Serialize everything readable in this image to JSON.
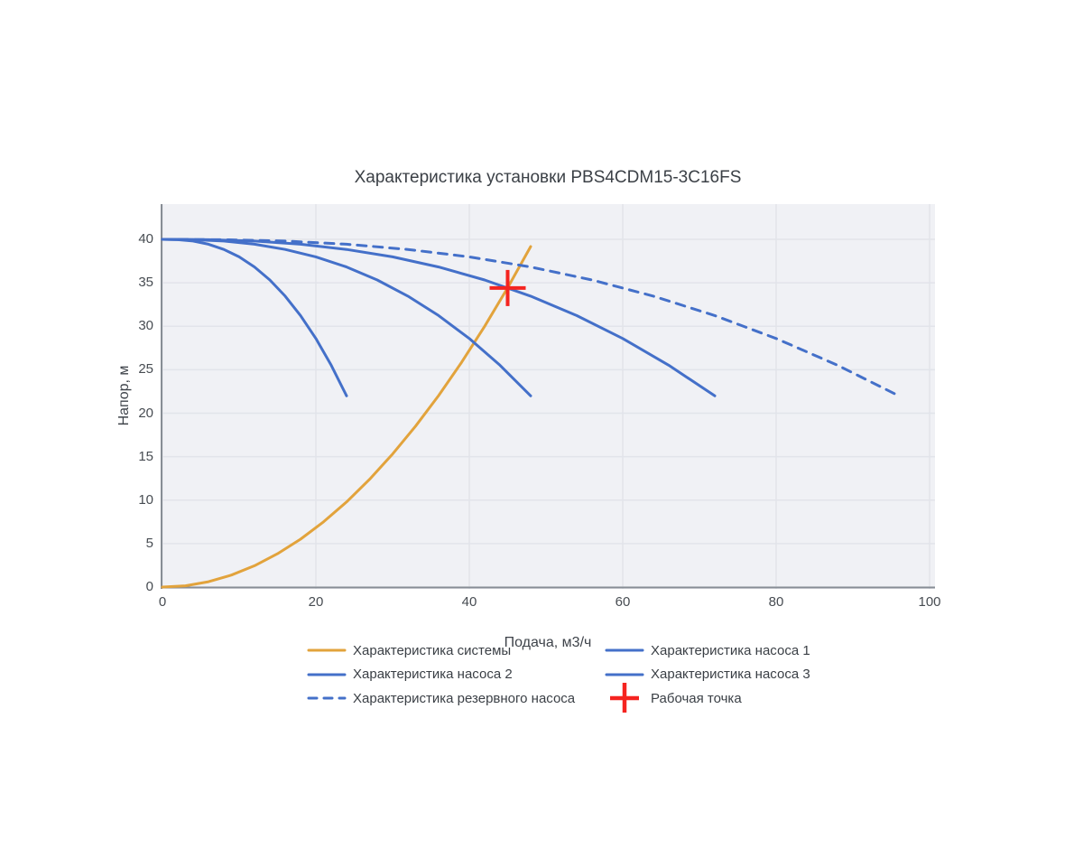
{
  "chart_data": {
    "type": "line",
    "title": "Характеристика установки PBS4CDM15-3C16FS",
    "xlabel": "Подача, м3/ч",
    "ylabel": "Напор, м",
    "xlim": [
      0,
      100.7
    ],
    "ylim": [
      0,
      44
    ],
    "x_ticks": [
      0,
      20,
      40,
      60,
      80,
      100
    ],
    "y_ticks": [
      0,
      5,
      10,
      15,
      20,
      25,
      30,
      35,
      40
    ],
    "grid": true,
    "legend_position": "bottom",
    "working_point": {
      "x": 45,
      "y": 34.4
    },
    "colors": {
      "system": "#e2a33c",
      "pump": "#4470c9",
      "reserve": "#4470c9",
      "working_point": "#f52420",
      "plot_background": "#f0f1f5",
      "gridline": "#e2e4ea",
      "axis_line": "#878d95",
      "text": "#3b4046"
    },
    "series": [
      {
        "name": "Характеристика системы",
        "color": "#e2a33c",
        "dash": "solid",
        "kind": "line",
        "x": [
          0,
          3,
          6,
          9,
          12,
          15,
          18,
          21,
          24,
          27,
          30,
          33,
          36,
          39,
          42,
          45,
          48
        ],
        "y": [
          0,
          0.15,
          0.61,
          1.38,
          2.45,
          3.83,
          5.51,
          7.5,
          9.79,
          12.39,
          15.3,
          18.51,
          22.03,
          25.86,
          29.99,
          34.43,
          39.17
        ]
      },
      {
        "name": "Характеристика насоса 1",
        "color": "#4470c9",
        "dash": "solid",
        "kind": "line",
        "x": [
          0,
          2,
          4,
          6,
          8,
          10,
          12,
          14,
          16,
          18,
          20,
          22,
          24
        ],
        "y": [
          40,
          39.96,
          39.8,
          39.44,
          38.84,
          37.98,
          36.82,
          35.32,
          33.47,
          31.23,
          28.59,
          25.52,
          22
        ]
      },
      {
        "name": "Характеристика насоса 2",
        "color": "#4470c9",
        "dash": "solid",
        "kind": "line",
        "x": [
          0,
          4,
          8,
          12,
          16,
          20,
          24,
          28,
          32,
          36,
          40,
          44,
          48
        ],
        "y": [
          40,
          39.96,
          39.8,
          39.44,
          38.84,
          37.98,
          36.82,
          35.32,
          33.47,
          31.23,
          28.59,
          25.52,
          22
        ]
      },
      {
        "name": "Характеристика насоса 3",
        "color": "#4470c9",
        "dash": "solid",
        "kind": "line",
        "x": [
          0,
          6,
          12,
          18,
          24,
          30,
          36,
          42,
          48,
          54,
          60,
          66,
          72
        ],
        "y": [
          40,
          39.96,
          39.8,
          39.44,
          38.84,
          37.98,
          36.82,
          35.32,
          33.47,
          31.23,
          28.59,
          25.52,
          22
        ]
      },
      {
        "name": "Характеристика резервного насоса",
        "color": "#4470c9",
        "dash": "dashed",
        "kind": "line",
        "x": [
          0,
          8,
          16,
          24,
          32,
          40,
          48,
          56,
          64,
          72,
          80,
          88,
          96
        ],
        "y": [
          40,
          39.96,
          39.8,
          39.44,
          38.84,
          37.98,
          36.82,
          35.32,
          33.47,
          31.23,
          28.59,
          25.52,
          22
        ]
      },
      {
        "name": "Рабочая точка",
        "color": "#f52420",
        "kind": "marker",
        "marker": "cross",
        "x": [
          45
        ],
        "y": [
          34.4
        ]
      }
    ]
  }
}
